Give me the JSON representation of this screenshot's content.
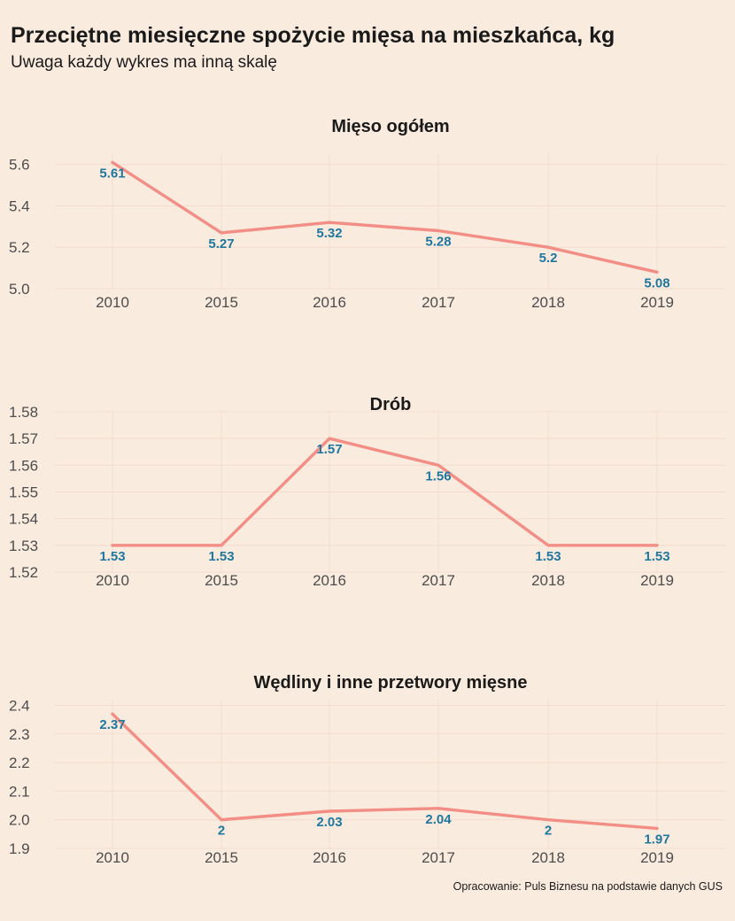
{
  "header": {
    "title": "Przeciętne miesięczne spożycie mięsa na mieszkańca, kg",
    "subtitle": "Uwaga każdy wykres ma inną skalę"
  },
  "footer": {
    "caption": "Opracowanie: Puls Biznesu na podstawie danych GUS"
  },
  "colors": {
    "background": "#faebdf",
    "line": "#f28e85",
    "labels": "#1f77a0"
  },
  "chart_data": [
    {
      "type": "line",
      "title": "Mięso ogółem",
      "categories": [
        "2010",
        "2015",
        "2016",
        "2017",
        "2018",
        "2019"
      ],
      "series": [
        {
          "values": [
            5.61,
            5.27,
            5.32,
            5.28,
            5.2,
            5.08
          ]
        }
      ],
      "data_labels": [
        "5.61",
        "5.27",
        "5.32",
        "5.28",
        "5.2",
        "5.08"
      ],
      "y_ticks": [
        5.0,
        5.2,
        5.4,
        5.6
      ],
      "y_tick_labels": [
        "5.0",
        "5.2",
        "5.4",
        "5.6"
      ],
      "ylim": [
        5.0,
        5.65
      ],
      "xlabel": "",
      "ylabel": "",
      "grid": true,
      "legend": "none"
    },
    {
      "type": "line",
      "title": "Drób",
      "categories": [
        "2010",
        "2015",
        "2016",
        "2017",
        "2018",
        "2019"
      ],
      "series": [
        {
          "values": [
            1.53,
            1.53,
            1.57,
            1.56,
            1.53,
            1.53
          ]
        }
      ],
      "data_labels": [
        "1.53",
        "1.53",
        "1.57",
        "1.56",
        "1.53",
        "1.53"
      ],
      "y_ticks": [
        1.52,
        1.53,
        1.54,
        1.55,
        1.56,
        1.57,
        1.58
      ],
      "y_tick_labels": [
        "1.52",
        "1.53",
        "1.54",
        "1.55",
        "1.56",
        "1.57",
        "1.58"
      ],
      "ylim": [
        1.52,
        1.58
      ],
      "xlabel": "",
      "ylabel": "",
      "grid": true,
      "legend": "none"
    },
    {
      "type": "line",
      "title": "Wędliny i inne przetwory mięsne",
      "categories": [
        "2010",
        "2015",
        "2016",
        "2017",
        "2018",
        "2019"
      ],
      "series": [
        {
          "values": [
            2.37,
            2.0,
            2.03,
            2.04,
            2.0,
            1.97
          ]
        }
      ],
      "data_labels": [
        "2.37",
        "2",
        "2.03",
        "2.04",
        "2",
        "1.97"
      ],
      "y_ticks": [
        1.9,
        2.0,
        2.1,
        2.2,
        2.3,
        2.4
      ],
      "y_tick_labels": [
        "1.9",
        "2.0",
        "2.1",
        "2.2",
        "2.3",
        "2.4"
      ],
      "ylim": [
        1.9,
        2.42
      ],
      "xlabel": "",
      "ylabel": "",
      "grid": true,
      "legend": "none"
    }
  ]
}
